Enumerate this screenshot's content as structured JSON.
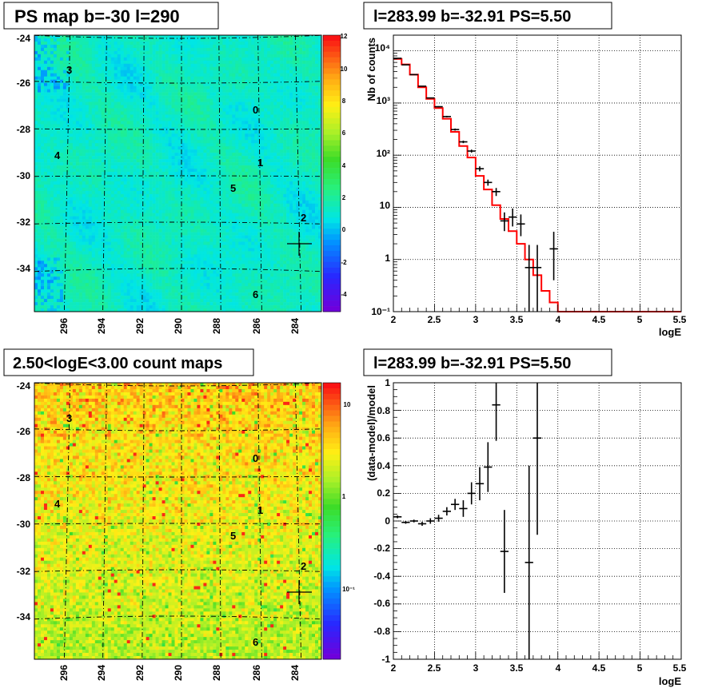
{
  "panels": {
    "top_left": {
      "title": "PS map b=-30 l=290",
      "y_ticks": [
        "-24",
        "-26",
        "-28",
        "-30",
        "-32",
        "-34"
      ],
      "x_ticks": [
        "296",
        "294",
        "292",
        "290",
        "288",
        "286",
        "284"
      ],
      "palette_ticks": [
        "12",
        "10",
        "8",
        "6",
        "4",
        "2",
        "0",
        "-2",
        "-4"
      ],
      "sources": [
        "3",
        "0",
        "4",
        "1",
        "5",
        "2",
        "6"
      ]
    },
    "bottom_left": {
      "title": "2.50<logE<3.00 count maps",
      "y_ticks": [
        "-24",
        "-26",
        "-28",
        "-30",
        "-32",
        "-34"
      ],
      "x_ticks": [
        "296",
        "294",
        "292",
        "290",
        "288",
        "286",
        "284"
      ],
      "palette_ticks": [
        "10",
        "1",
        "10⁻¹"
      ],
      "sources": [
        "3",
        "0",
        "4",
        "1",
        "5",
        "2",
        "6"
      ]
    },
    "top_right": {
      "title": "l=283.99 b=-32.91 PS=5.50",
      "ylabel": "Nb of counts",
      "xlabel": "logE",
      "y_ticks": [
        "10⁴",
        "10³",
        "10²",
        "10",
        "1",
        "10⁻¹"
      ],
      "x_ticks": [
        "2",
        "2.5",
        "3",
        "3.5",
        "4",
        "4.5",
        "5",
        "5.5"
      ]
    },
    "bottom_right": {
      "title": "l=283.99 b=-32.91 PS=5.50",
      "ylabel": "(data-model)/model",
      "xlabel": "logE",
      "y_ticks": [
        "1",
        "0.8",
        "0.6",
        "0.4",
        "0.2",
        "0",
        "-0.2",
        "-0.4",
        "-0.6",
        "-0.8",
        "-1"
      ],
      "x_ticks": [
        "2",
        "2.5",
        "3",
        "3.5",
        "4",
        "4.5",
        "5",
        "5.5"
      ]
    }
  },
  "colors": {
    "model_line": "#ff0000",
    "data_points": "#000000"
  },
  "chart_data": [
    {
      "type": "heatmap",
      "title": "PS map b=-30 l=290",
      "xlim": [
        297.5,
        282.5
      ],
      "ylim": [
        -35.9,
        -23.6
      ],
      "zlim": [
        -5,
        12
      ],
      "x_ticks": [
        296,
        294,
        292,
        290,
        288,
        286,
        284
      ],
      "y_ticks": [
        -24,
        -26,
        -28,
        -30,
        -32,
        -34
      ],
      "sources": [
        {
          "label": "3",
          "l": 295.9,
          "b": -25.3
        },
        {
          "label": "0",
          "l": 286.0,
          "b": -27.3
        },
        {
          "label": "4",
          "l": 296.4,
          "b": -29.1
        },
        {
          "label": "1",
          "l": 285.8,
          "b": -29.5
        },
        {
          "label": "5",
          "l": 287.2,
          "b": -30.6
        },
        {
          "label": "2",
          "l": 283.7,
          "b": -32.3
        },
        {
          "label": "6",
          "l": 285.9,
          "b": -35.0
        }
      ],
      "marker": {
        "l": 283.99,
        "b": -32.91
      }
    },
    {
      "type": "heatmap",
      "title": "2.50<logE<3.00 count maps",
      "xlim": [
        297.5,
        282.5
      ],
      "ylim": [
        -35.9,
        -23.6
      ],
      "scale": "log",
      "zlim": [
        0.03,
        20
      ],
      "x_ticks": [
        296,
        294,
        292,
        290,
        288,
        286,
        284
      ],
      "y_ticks": [
        -24,
        -26,
        -28,
        -30,
        -32,
        -34
      ],
      "sources": [
        {
          "label": "3",
          "l": 295.9,
          "b": -25.3
        },
        {
          "label": "0",
          "l": 286.0,
          "b": -27.3
        },
        {
          "label": "4",
          "l": 296.4,
          "b": -29.1
        },
        {
          "label": "1",
          "l": 285.8,
          "b": -29.5
        },
        {
          "label": "5",
          "l": 287.2,
          "b": -30.6
        },
        {
          "label": "2",
          "l": 283.7,
          "b": -32.3
        },
        {
          "label": "6",
          "l": 285.9,
          "b": -35.0
        }
      ],
      "marker": {
        "l": 283.99,
        "b": -32.91
      }
    },
    {
      "type": "line",
      "title": "l=283.99 b=-32.91 PS=5.50",
      "xlabel": "logE",
      "ylabel": "Nb of counts",
      "xlim": [
        2,
        5.5
      ],
      "ylim": [
        0.1,
        20000
      ],
      "yscale": "log",
      "grid": true,
      "series": [
        {
          "style": "step",
          "bin_edges": [
            2.0,
            2.1,
            2.2,
            2.3,
            2.4,
            2.5,
            2.6,
            2.7,
            2.8,
            2.9,
            3.0,
            3.1,
            3.2,
            3.3,
            3.4,
            3.5,
            3.6,
            3.7,
            3.8,
            3.9,
            4.0,
            5.5
          ],
          "values": [
            7000,
            5500,
            3500,
            2000,
            1200,
            800,
            500,
            280,
            150,
            90,
            40,
            22,
            11,
            6,
            3.5,
            2.0,
            1.0,
            0.5,
            0.25,
            0.15,
            0.1
          ]
        },
        {
          "style": "errorbar",
          "x": [
            2.05,
            2.15,
            2.25,
            2.35,
            2.45,
            2.55,
            2.65,
            2.75,
            2.85,
            2.95,
            3.05,
            3.15,
            3.25,
            3.35,
            3.45,
            3.55,
            3.65,
            3.75,
            3.95
          ],
          "y": [
            7200,
            5400,
            3500,
            2100,
            1250,
            850,
            550,
            310,
            180,
            120,
            55,
            30,
            20,
            5.5,
            6.5,
            4.8,
            0.7,
            0.7,
            1.6
          ],
          "y_err_low": [
            60,
            50,
            40,
            30,
            25,
            20,
            18,
            14,
            10,
            8,
            6,
            4,
            3.5,
            2,
            2.2,
            2.0,
            0.6,
            0.6,
            1.2
          ],
          "y_err_high": [
            60,
            50,
            40,
            30,
            25,
            20,
            18,
            14,
            10,
            8,
            6,
            4,
            3.5,
            2.5,
            3,
            2.5,
            1.2,
            1.2,
            1.8
          ]
        }
      ]
    },
    {
      "type": "scatter",
      "title": "l=283.99 b=-32.91 PS=5.50",
      "xlabel": "logE",
      "ylabel": "(data-model)/model",
      "xlim": [
        2,
        5.5
      ],
      "ylim": [
        -1,
        1
      ],
      "grid": true,
      "series": [
        {
          "style": "errorbar",
          "x": [
            2.05,
            2.15,
            2.25,
            2.35,
            2.45,
            2.55,
            2.65,
            2.75,
            2.85,
            2.95,
            3.05,
            3.15,
            3.25,
            3.35,
            3.65,
            3.75
          ],
          "y": [
            0.03,
            -0.01,
            0.0,
            -0.02,
            0.0,
            0.02,
            0.07,
            0.12,
            0.09,
            0.2,
            0.27,
            0.39,
            0.84,
            -0.22,
            -0.3,
            0.6
          ],
          "y_err": [
            0.01,
            0.01,
            0.01,
            0.015,
            0.02,
            0.025,
            0.03,
            0.04,
            0.06,
            0.08,
            0.12,
            0.18,
            0.26,
            0.3,
            0.7,
            0.7
          ]
        }
      ]
    }
  ]
}
